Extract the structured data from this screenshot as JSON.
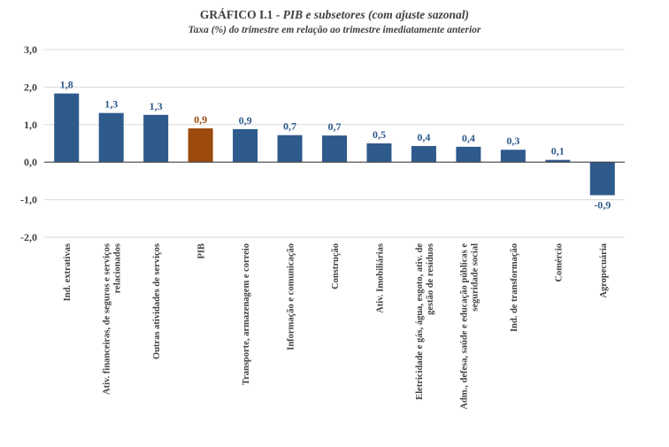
{
  "chart_data": {
    "type": "bar",
    "title_prefix": "GRÁFICO I.1 -",
    "title_italic": "PIB  e subsetores (com ajuste sazonal)",
    "subtitle": "Taxa (%) do trimestre em relação ao trimestre imediatamente anterior",
    "ylim": [
      -2.0,
      3.0
    ],
    "yticks": [
      3.0,
      2.0,
      1.0,
      0.0,
      -1.0,
      -2.0
    ],
    "ytick_labels": [
      "3,0",
      "2,0",
      "1,0",
      "0,0",
      "-1,0",
      "-2,0"
    ],
    "grid": true,
    "legend": "none",
    "categories": [
      [
        "Ind. extrativas"
      ],
      [
        "Ativ. financeiras, de seguros e serviços",
        "relacionados"
      ],
      [
        "Outras atividades de serviços"
      ],
      [
        "PIB"
      ],
      [
        "Transporte, armazenagem e correio"
      ],
      [
        "Informação e comunicação"
      ],
      [
        "Construção"
      ],
      [
        "Ativ. Imobiliárias"
      ],
      [
        "Eletricidade e gás, água, esgoto, ativ. de",
        "gestão de resíduos"
      ],
      [
        "Adm., defesa, saúde e educação públicas e",
        "seguridade social"
      ],
      [
        "Ind. de transformação"
      ],
      [
        "Comércio"
      ],
      [
        "Agropecuária"
      ]
    ],
    "values": [
      1.83,
      1.31,
      1.26,
      0.9,
      0.88,
      0.72,
      0.71,
      0.5,
      0.43,
      0.41,
      0.33,
      0.06,
      -0.88
    ],
    "value_labels": [
      "1,8",
      "1,3",
      "1,3",
      "0,9",
      "0,9",
      "0,7",
      "0,7",
      "0,5",
      "0,4",
      "0,4",
      "0,3",
      "0,1",
      "-0,9"
    ],
    "highlight_index": 3,
    "colors": {
      "bar": "#2E5A8C",
      "highlight": "#9C4A0E",
      "label": "#2E5A8C",
      "highlight_label": "#9C4A0E",
      "grid": "#D9D9D9",
      "axis": "#404040"
    }
  }
}
